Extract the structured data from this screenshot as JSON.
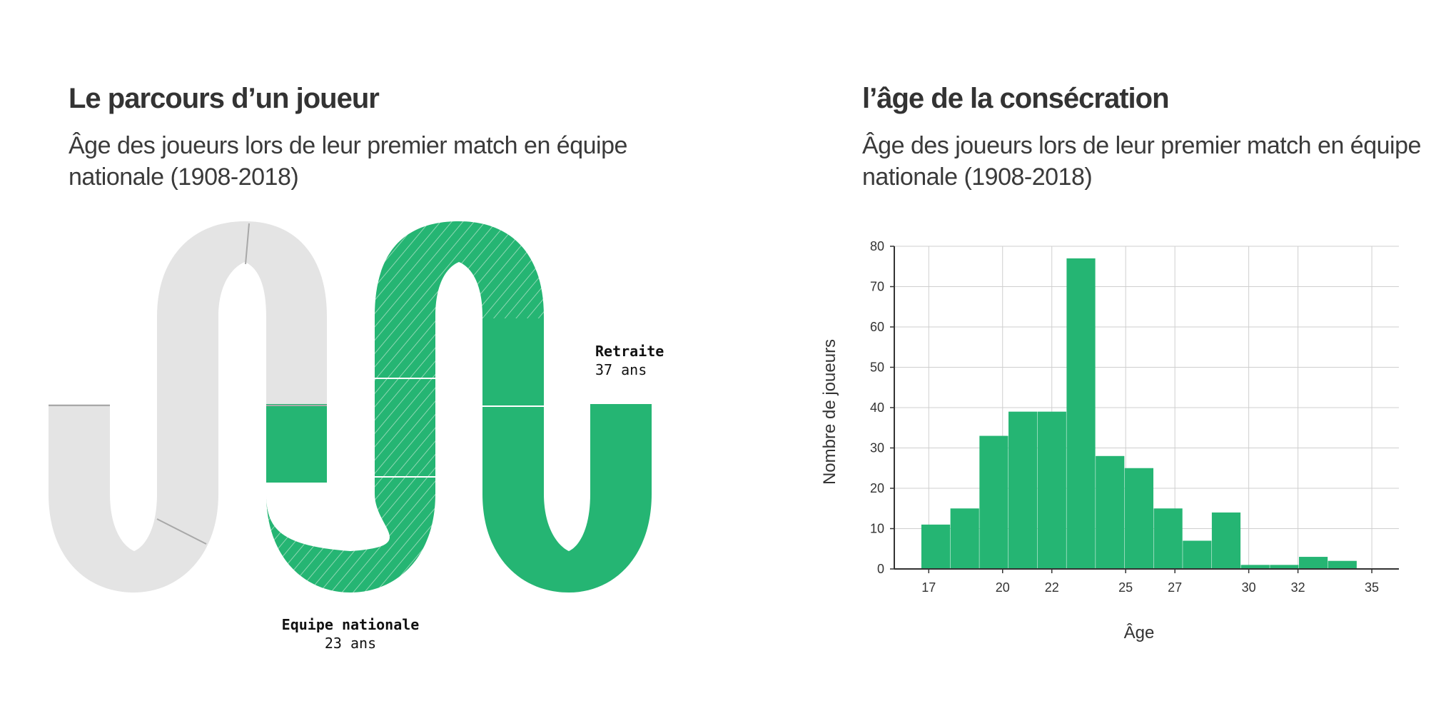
{
  "left_panel": {
    "title": "Le parcours d’un joueur",
    "subtitle": "Âge des joueurs lors de leur premier match en équipe nationale (1908-2018)",
    "labels": {
      "national_team": {
        "name": "Equipe nationale",
        "age": "23 ans"
      },
      "retirement": {
        "name": "Retraite",
        "age": "37 ans"
      }
    },
    "colors": {
      "track": "#e4e4e4",
      "career": "#25b573",
      "hatch": "#8fd7b3",
      "divider": "#ffffff",
      "tick": "#a8a8a8"
    }
  },
  "right_panel": {
    "title": "l’âge de la consécration",
    "subtitle": "Âge des joueurs lors de leur premier match en équipe nationale (1908-2018)"
  },
  "chart_data": {
    "type": "bar",
    "title": "l’âge de la consécration",
    "subtitle": "Âge des joueurs lors de leur premier match en équipe nationale (1908-2018)",
    "xlabel": "Âge",
    "ylabel": "Nombre de joueurs",
    "bin_width": 1.18,
    "bins_start": [
      16.7,
      17.88,
      19.06,
      20.24,
      21.42,
      22.6,
      23.78,
      24.96,
      26.14,
      27.32,
      28.5,
      29.68,
      30.86,
      32.04,
      33.22
    ],
    "values": [
      11,
      15,
      33,
      39,
      39,
      77,
      28,
      25,
      15,
      7,
      14,
      1,
      1,
      3,
      2
    ],
    "xlim": [
      15.6,
      36.1
    ],
    "ylim": [
      0,
      80
    ],
    "x_ticks": [
      17,
      20,
      22,
      25,
      27,
      30,
      32,
      35
    ],
    "x_tick_labels": [
      "17",
      "20",
      "22",
      "25",
      "27",
      "30",
      "32",
      "35"
    ],
    "y_ticks": [
      0,
      10,
      20,
      30,
      40,
      50,
      60,
      70,
      80
    ],
    "y_tick_labels": [
      "0",
      "10",
      "20",
      "30",
      "40",
      "50",
      "60",
      "70",
      "80"
    ],
    "grid": true,
    "bar_color": "#25b573"
  }
}
